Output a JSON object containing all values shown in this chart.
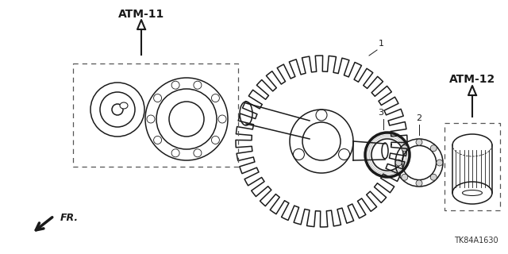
{
  "bg_color": "#ffffff",
  "fig_width": 6.4,
  "fig_height": 3.2,
  "dpi": 100,
  "label_atm11": "ATM-11",
  "label_atm12": "ATM-12",
  "label_fr": "FR.",
  "label_part_id": "TK84A1630",
  "color_main": "#1a1a1a",
  "color_dash": "#555555"
}
